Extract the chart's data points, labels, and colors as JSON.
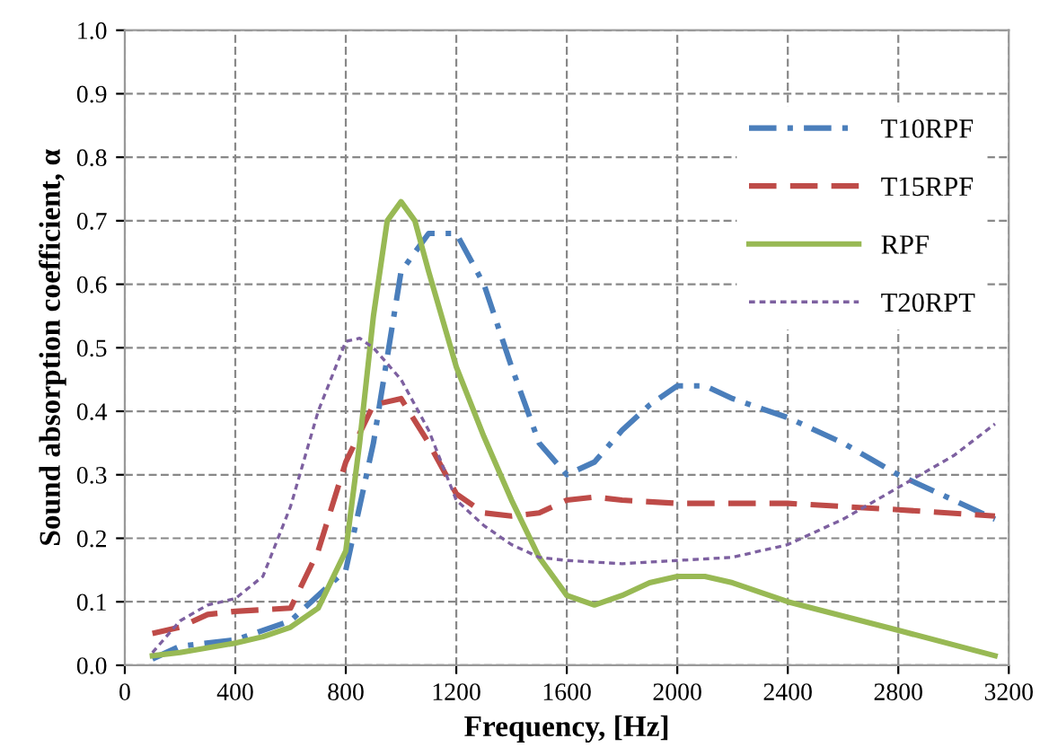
{
  "chart_data": {
    "type": "line",
    "xlabel": "Frequency, [Hz]",
    "ylabel": "Sound absorption coefficient, α",
    "xlim": [
      0,
      3200
    ],
    "xticks": [
      0,
      400,
      800,
      1200,
      1600,
      2000,
      2400,
      2800,
      3200
    ],
    "ylim": [
      0,
      1
    ],
    "yticks": [
      {
        "value": 0,
        "label": "0.0"
      },
      {
        "value": 0.1,
        "label": "0.1"
      },
      {
        "value": 0.2,
        "label": "0.2"
      },
      {
        "value": 0.3,
        "label": "0.3"
      },
      {
        "value": 0.4,
        "label": "0.4"
      },
      {
        "value": 0.5,
        "label": "0.5"
      },
      {
        "value": 0.6,
        "label": "0.6"
      },
      {
        "value": 0.7,
        "label": "0.7"
      },
      {
        "value": 0.8,
        "label": "0.8"
      },
      {
        "value": 0.9,
        "label": "0.9"
      },
      {
        "value": 1,
        "label": "1.0"
      }
    ],
    "grid": true,
    "legend": "top right",
    "marker": "none",
    "series": [
      {
        "name": "T10RPF",
        "color": "#4a7ebb",
        "line_style": "dashdot",
        "x": [
          100,
          200,
          400,
          600,
          800,
          900,
          1000,
          1100,
          1200,
          1300,
          1400,
          1500,
          1600,
          1700,
          1800,
          1900,
          2000,
          2100,
          2200,
          2400,
          2600,
          2800,
          3000,
          3150
        ],
        "values": [
          0.01,
          0.03,
          0.04,
          0.07,
          0.15,
          0.35,
          0.62,
          0.68,
          0.68,
          0.6,
          0.47,
          0.35,
          0.3,
          0.32,
          0.37,
          0.41,
          0.44,
          0.44,
          0.42,
          0.39,
          0.35,
          0.3,
          0.26,
          0.23
        ]
      },
      {
        "name": "T15RPF",
        "color": "#be4b48",
        "line_style": "dashed",
        "x": [
          100,
          200,
          300,
          400,
          600,
          700,
          800,
          900,
          1000,
          1100,
          1200,
          1300,
          1400,
          1500,
          1600,
          1700,
          1800,
          2000,
          2400,
          2800,
          3150
        ],
        "values": [
          0.05,
          0.06,
          0.08,
          0.085,
          0.09,
          0.18,
          0.32,
          0.41,
          0.42,
          0.35,
          0.27,
          0.24,
          0.235,
          0.24,
          0.26,
          0.265,
          0.26,
          0.255,
          0.255,
          0.245,
          0.235
        ]
      },
      {
        "name": "RPF",
        "color": "#98b954",
        "line_style": "solid",
        "x": [
          100,
          200,
          400,
          500,
          600,
          700,
          800,
          850,
          900,
          950,
          1000,
          1050,
          1100,
          1200,
          1300,
          1400,
          1500,
          1600,
          1700,
          1800,
          1900,
          2000,
          2100,
          2200,
          2400,
          2800,
          3150
        ],
        "values": [
          0.015,
          0.02,
          0.035,
          0.045,
          0.06,
          0.09,
          0.18,
          0.35,
          0.55,
          0.7,
          0.73,
          0.7,
          0.62,
          0.47,
          0.36,
          0.26,
          0.17,
          0.11,
          0.095,
          0.11,
          0.13,
          0.14,
          0.14,
          0.13,
          0.1,
          0.055,
          0.015
        ]
      },
      {
        "name": "T20RPT",
        "color": "#7d60a0",
        "line_style": "dotted",
        "x": [
          100,
          200,
          300,
          400,
          500,
          600,
          700,
          800,
          850,
          900,
          1000,
          1100,
          1200,
          1300,
          1400,
          1500,
          1600,
          1800,
          2000,
          2200,
          2400,
          2600,
          2800,
          3000,
          3150
        ],
        "values": [
          0.02,
          0.07,
          0.095,
          0.105,
          0.14,
          0.25,
          0.4,
          0.51,
          0.515,
          0.5,
          0.45,
          0.37,
          0.26,
          0.22,
          0.19,
          0.17,
          0.165,
          0.16,
          0.165,
          0.17,
          0.19,
          0.23,
          0.28,
          0.33,
          0.38
        ]
      }
    ]
  }
}
